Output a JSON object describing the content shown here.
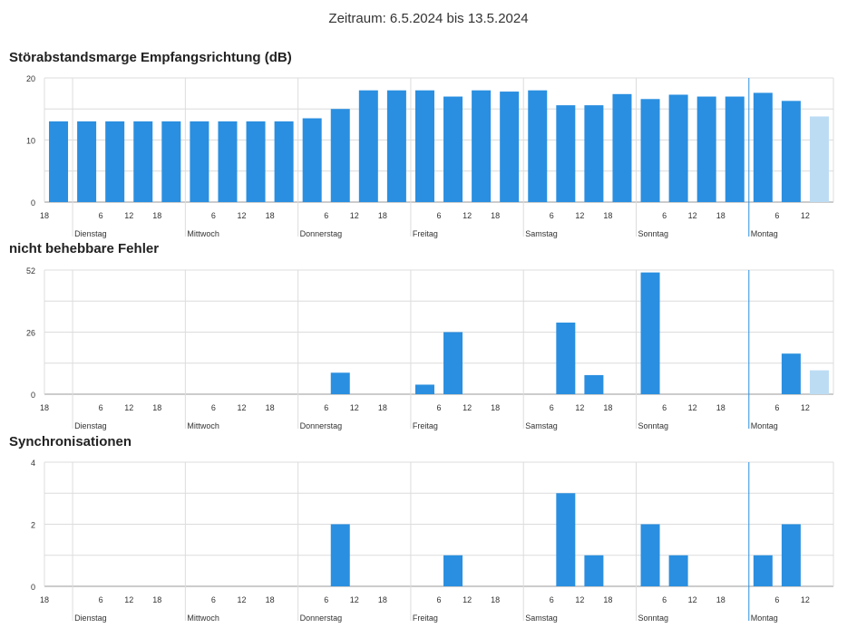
{
  "header": {
    "period": "Zeitraum: 6.5.2024 bis 13.5.2024"
  },
  "colors": {
    "bar": "#2a8fe0",
    "bar_light": "#bcdcf3",
    "grid": "#dcdcdc",
    "today_line": "#2a8fe0"
  },
  "chart_data": [
    {
      "type": "bar",
      "title": "Störabstandsmarge Empfangsrichtung (dB)",
      "ylim": [
        0,
        20
      ],
      "y_ticks": [
        0,
        10,
        20
      ],
      "hour_ticks": [
        "18",
        "6",
        "12",
        "18",
        "6",
        "12",
        "18",
        "6",
        "12",
        "18",
        "6",
        "12",
        "18",
        "6",
        "12",
        "18",
        "6",
        "12",
        "18",
        "6",
        "12"
      ],
      "day_labels": [
        "Dienstag",
        "Mittwoch",
        "Donnerstag",
        "Freitag",
        "Samstag",
        "Sonntag",
        "Montag"
      ],
      "values": [
        13,
        13,
        13,
        13,
        13,
        13,
        13,
        13,
        13,
        13.5,
        15,
        18,
        18,
        18,
        17,
        18,
        17.8,
        18,
        15.6,
        15.6,
        17.4,
        16.6,
        17.3,
        17,
        17,
        17.6,
        16.3,
        13.8
      ],
      "last_bar_partial": true
    },
    {
      "type": "bar",
      "title": "nicht behebbare Fehler",
      "ylim": [
        0,
        52
      ],
      "y_ticks": [
        0,
        26,
        52
      ],
      "hour_ticks": [
        "18",
        "6",
        "12",
        "18",
        "6",
        "12",
        "18",
        "6",
        "12",
        "18",
        "6",
        "12",
        "18",
        "6",
        "12",
        "18",
        "6",
        "12",
        "18",
        "6",
        "12"
      ],
      "day_labels": [
        "Dienstag",
        "Mittwoch",
        "Donnerstag",
        "Freitag",
        "Samstag",
        "Sonntag",
        "Montag"
      ],
      "values": [
        0,
        0,
        0,
        0,
        0,
        0,
        0,
        0,
        0,
        0,
        9,
        0,
        0,
        4,
        26,
        0,
        0,
        0,
        30,
        8,
        0,
        51,
        0,
        0,
        0,
        0,
        17,
        10
      ],
      "last_bar_partial": true
    },
    {
      "type": "bar",
      "title": "Synchronisationen",
      "ylim": [
        0,
        4
      ],
      "y_ticks": [
        0,
        2,
        4
      ],
      "hour_ticks": [
        "18",
        "6",
        "12",
        "18",
        "6",
        "12",
        "18",
        "6",
        "12",
        "18",
        "6",
        "12",
        "18",
        "6",
        "12",
        "18",
        "6",
        "12",
        "18",
        "6",
        "12"
      ],
      "day_labels": [
        "Dienstag",
        "Mittwoch",
        "Donnerstag",
        "Freitag",
        "Samstag",
        "Sonntag",
        "Montag"
      ],
      "values": [
        0,
        0,
        0,
        0,
        0,
        0,
        0,
        0,
        0,
        0,
        2,
        0,
        0,
        0,
        1,
        0,
        0,
        0,
        3,
        1,
        0,
        2,
        1,
        0,
        0,
        1,
        2,
        0
      ],
      "last_bar_partial": false
    }
  ]
}
